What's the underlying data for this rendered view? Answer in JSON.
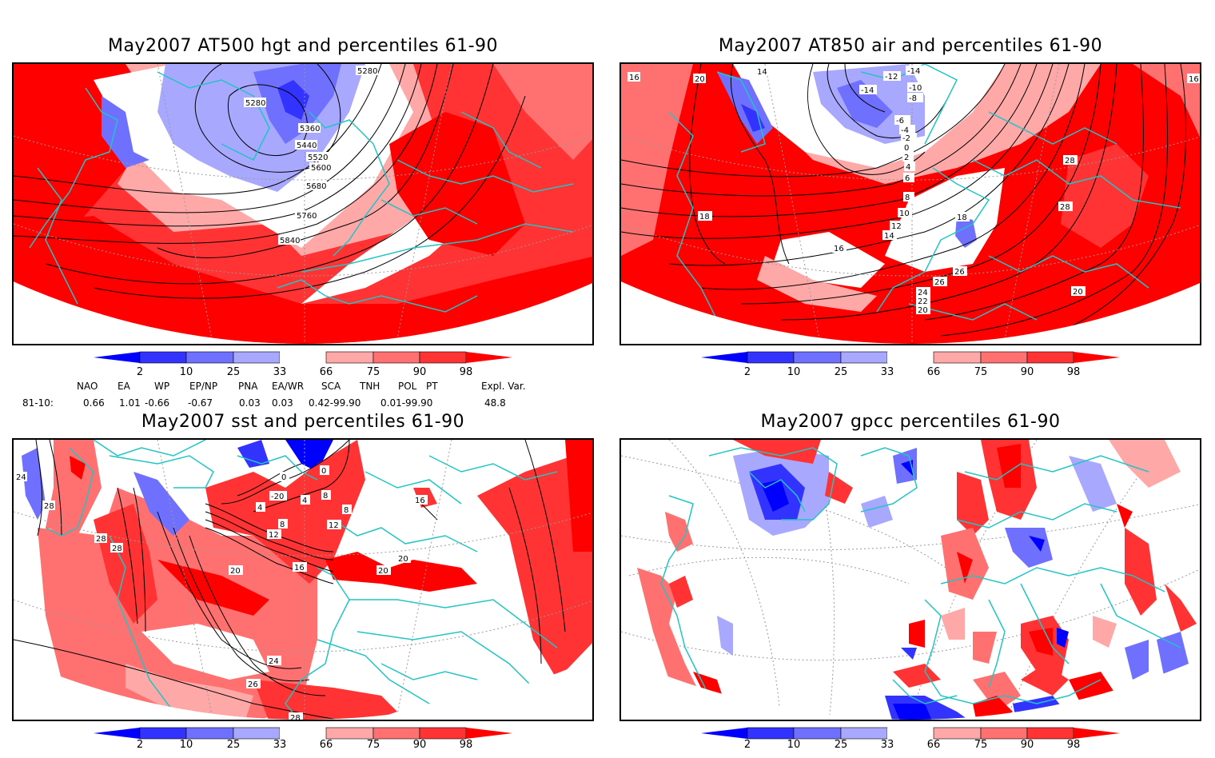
{
  "colors": {
    "blue_extreme": "#0000ff",
    "blue_2_10": "#3333ff",
    "blue_10_25": "#7070ff",
    "blue_25_33": "#a8a8ff",
    "neutral": "#ffffff",
    "red_66_75": "#ffa8a8",
    "red_75_90": "#ff7070",
    "red_90_98": "#ff3333",
    "red_extreme": "#ff0000",
    "coast": "#22c4c4",
    "contour": "#000000"
  },
  "panels": [
    {
      "id": "at500",
      "title": "May2007 AT500 hgt and percentiles 61-90",
      "contour_labels": [
        "5280",
        "5280",
        "5360",
        "5440",
        "5520",
        "5600",
        "5680",
        "5760",
        "5840"
      ]
    },
    {
      "id": "at850",
      "title": "May2007 AT850 air and percentiles 61-90",
      "contour_labels": [
        "16",
        "20",
        "14",
        "-14",
        "-12",
        "-14",
        "-10",
        "-8",
        "-6",
        "-4",
        "-2",
        "0",
        "2",
        "4",
        "6",
        "8",
        "10",
        "12",
        "14",
        "16",
        "18",
        "18",
        "28",
        "28",
        "26",
        "26",
        "24",
        "22",
        "20",
        "20",
        "16"
      ]
    },
    {
      "id": "sst",
      "title": "May2007 sst and percentiles 61-90",
      "contour_labels": [
        "24",
        "28",
        "28",
        "28",
        "0",
        "0",
        "-20",
        "4",
        "4",
        "8",
        "8",
        "8",
        "12",
        "12",
        "16",
        "20",
        "16",
        "20",
        "20",
        "24",
        "26",
        "28"
      ]
    },
    {
      "id": "gpcc",
      "title": "May2007 gpcc percentiles 61-90",
      "contour_labels": []
    }
  ],
  "colorbar": {
    "ticks": [
      "2",
      "10",
      "25",
      "33",
      "66",
      "75",
      "90",
      "98"
    ]
  },
  "indices": {
    "headers": [
      "NAO",
      "EA",
      "WP",
      "EP/NP",
      "PNA",
      "EA/WR",
      "SCA",
      "TNH",
      "POL",
      "PT",
      "Expl. Var."
    ],
    "row_label": "81-10:",
    "values": [
      "0.66",
      "1.01",
      "-0.66",
      "-0.67",
      "0.03",
      "0.03",
      "0.42-99.90",
      "0.01-99.90",
      "48.8"
    ]
  }
}
